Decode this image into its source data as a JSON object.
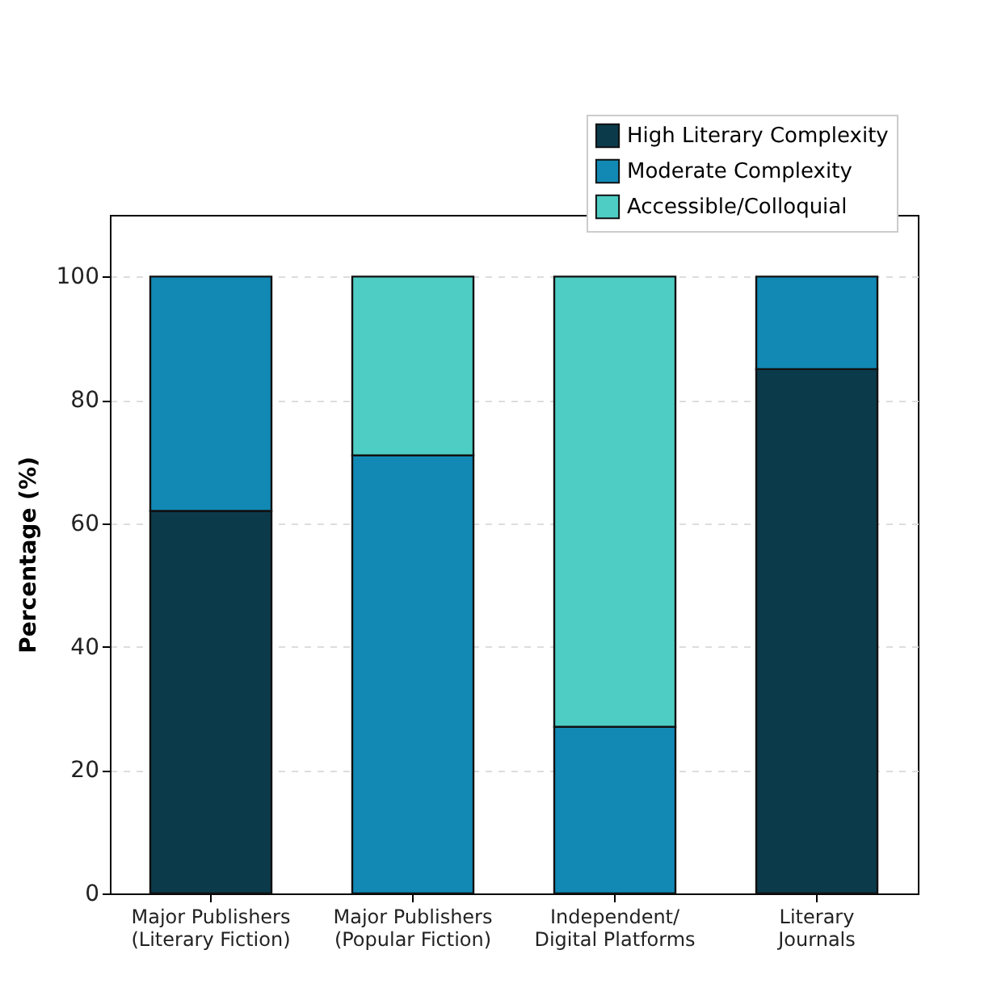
{
  "chart_data": {
    "type": "bar",
    "ylabel": "Percentage (%)",
    "stacked": true,
    "categories": [
      "Major Publishers\n(Literary Fiction)",
      "Major Publishers\n(Popular Fiction)",
      "Independent/\nDigital Platforms",
      "Literary\nJournals"
    ],
    "series": [
      {
        "name": "High Literary Complexity",
        "color": "#0b3a4b",
        "values": [
          62,
          0,
          0,
          85
        ]
      },
      {
        "name": "Moderate Complexity",
        "color": "#1289b4",
        "values": [
          38,
          71,
          27,
          15
        ]
      },
      {
        "name": "Accessible/Colloquial",
        "color": "#4ecdc4",
        "values": [
          0,
          29,
          73,
          0
        ]
      }
    ],
    "ylim": [
      0,
      110
    ],
    "yticks": [
      0,
      20,
      40,
      60,
      80,
      100
    ],
    "grid": "y",
    "legend": "top right"
  }
}
